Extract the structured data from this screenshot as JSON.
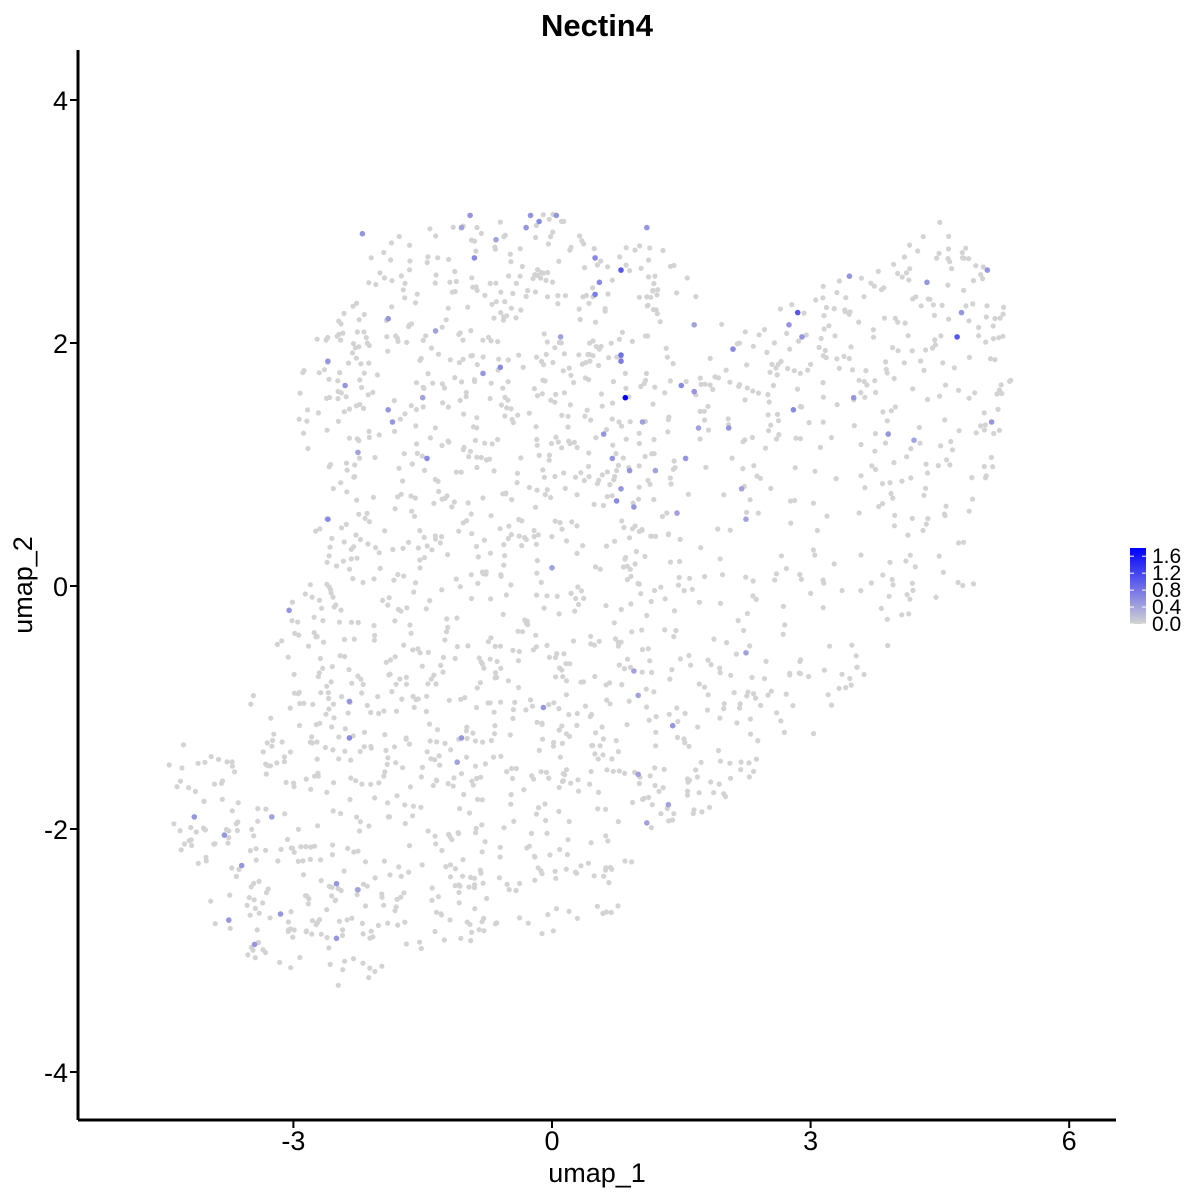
{
  "chart_data": {
    "type": "scatter",
    "title": "Nectin4",
    "xlabel": "umap_1",
    "ylabel": "umap_2",
    "xlim": [
      -5.5,
      6.5
    ],
    "ylim": [
      -4.3,
      4.4
    ],
    "xticks": [
      -3,
      0,
      3,
      6
    ],
    "yticks": [
      -4,
      -2,
      0,
      2,
      4
    ],
    "grid": false,
    "point_color_low": "#d3d3d3",
    "point_color_high": "#0000ff",
    "legend": {
      "placement": "right",
      "ticks": [
        "1.6",
        "1.2",
        "0.8",
        "0.4",
        "0.0"
      ],
      "min": 0,
      "max": 1.7
    },
    "expressing_points": [
      {
        "x": -0.95,
        "y": 3.05,
        "v": 0.5
      },
      {
        "x": -1.05,
        "y": 2.95,
        "v": 0.4
      },
      {
        "x": -0.25,
        "y": 3.05,
        "v": 0.5
      },
      {
        "x": -0.15,
        "y": 3.0,
        "v": 0.6
      },
      {
        "x": 0.05,
        "y": 3.05,
        "v": 0.5
      },
      {
        "x": -0.3,
        "y": 2.95,
        "v": 0.5
      },
      {
        "x": -0.65,
        "y": 2.85,
        "v": 0.4
      },
      {
        "x": -0.9,
        "y": 2.7,
        "v": 0.6
      },
      {
        "x": -2.2,
        "y": 2.9,
        "v": 0.5
      },
      {
        "x": 0.5,
        "y": 2.7,
        "v": 0.6
      },
      {
        "x": 0.8,
        "y": 2.6,
        "v": 1.0
      },
      {
        "x": 0.55,
        "y": 2.5,
        "v": 0.6
      },
      {
        "x": 0.5,
        "y": 2.4,
        "v": 0.7
      },
      {
        "x": 1.1,
        "y": 2.95,
        "v": 0.5
      },
      {
        "x": -1.9,
        "y": 2.2,
        "v": 0.5
      },
      {
        "x": 0.1,
        "y": 2.05,
        "v": 0.4
      },
      {
        "x": -1.35,
        "y": 2.1,
        "v": 0.4
      },
      {
        "x": 0.8,
        "y": 1.9,
        "v": 0.8
      },
      {
        "x": 0.8,
        "y": 1.85,
        "v": 0.7
      },
      {
        "x": 0.85,
        "y": 1.55,
        "v": 1.7
      },
      {
        "x": -0.6,
        "y": 1.8,
        "v": 0.6
      },
      {
        "x": -0.8,
        "y": 1.75,
        "v": 0.5
      },
      {
        "x": -2.6,
        "y": 1.85,
        "v": 0.5
      },
      {
        "x": -2.4,
        "y": 1.65,
        "v": 0.5
      },
      {
        "x": -1.9,
        "y": 1.45,
        "v": 0.5
      },
      {
        "x": -1.85,
        "y": 1.35,
        "v": 0.5
      },
      {
        "x": -1.5,
        "y": 1.55,
        "v": 0.4
      },
      {
        "x": -1.45,
        "y": 1.05,
        "v": 0.6
      },
      {
        "x": -2.25,
        "y": 1.1,
        "v": 0.4
      },
      {
        "x": -2.6,
        "y": 0.55,
        "v": 0.6
      },
      {
        "x": 0.6,
        "y": 1.25,
        "v": 0.5
      },
      {
        "x": 1.05,
        "y": 1.35,
        "v": 0.4
      },
      {
        "x": 0.7,
        "y": 1.05,
        "v": 0.5
      },
      {
        "x": 0.9,
        "y": 0.95,
        "v": 0.5
      },
      {
        "x": 0.8,
        "y": 0.8,
        "v": 0.5
      },
      {
        "x": 0.75,
        "y": 0.7,
        "v": 0.6
      },
      {
        "x": 0.95,
        "y": 0.65,
        "v": 0.5
      },
      {
        "x": 1.2,
        "y": 0.95,
        "v": 0.4
      },
      {
        "x": 1.5,
        "y": 1.65,
        "v": 0.6
      },
      {
        "x": 1.65,
        "y": 1.6,
        "v": 0.5
      },
      {
        "x": 1.7,
        "y": 1.3,
        "v": 0.4
      },
      {
        "x": 1.55,
        "y": 1.05,
        "v": 0.5
      },
      {
        "x": 2.1,
        "y": 1.95,
        "v": 0.6
      },
      {
        "x": 2.05,
        "y": 1.3,
        "v": 0.5
      },
      {
        "x": 2.2,
        "y": 0.8,
        "v": 0.4
      },
      {
        "x": 2.25,
        "y": 0.55,
        "v": 0.4
      },
      {
        "x": 1.45,
        "y": 0.6,
        "v": 0.4
      },
      {
        "x": 2.85,
        "y": 2.25,
        "v": 1.0
      },
      {
        "x": 2.75,
        "y": 2.15,
        "v": 0.5
      },
      {
        "x": 2.9,
        "y": 2.05,
        "v": 0.5
      },
      {
        "x": 2.8,
        "y": 1.45,
        "v": 0.6
      },
      {
        "x": 3.45,
        "y": 2.55,
        "v": 0.5
      },
      {
        "x": 3.5,
        "y": 1.55,
        "v": 0.5
      },
      {
        "x": 3.9,
        "y": 1.25,
        "v": 0.5
      },
      {
        "x": 4.2,
        "y": 1.2,
        "v": 0.4
      },
      {
        "x": 4.35,
        "y": 2.5,
        "v": 0.5
      },
      {
        "x": 4.75,
        "y": 2.25,
        "v": 0.5
      },
      {
        "x": 4.7,
        "y": 2.05,
        "v": 1.0
      },
      {
        "x": 5.05,
        "y": 2.6,
        "v": 0.5
      },
      {
        "x": 5.1,
        "y": 1.35,
        "v": 0.5
      },
      {
        "x": 1.65,
        "y": 2.15,
        "v": 0.4
      },
      {
        "x": 0.0,
        "y": 0.15,
        "v": 0.4
      },
      {
        "x": -3.05,
        "y": -0.2,
        "v": 0.5
      },
      {
        "x": 0.95,
        "y": -0.7,
        "v": 0.4
      },
      {
        "x": 2.25,
        "y": -0.55,
        "v": 0.4
      },
      {
        "x": 1.0,
        "y": -0.9,
        "v": 0.4
      },
      {
        "x": -0.1,
        "y": -1.0,
        "v": 0.5
      },
      {
        "x": 1.4,
        "y": -1.15,
        "v": 0.5
      },
      {
        "x": -2.35,
        "y": -0.95,
        "v": 0.5
      },
      {
        "x": -2.35,
        "y": -1.25,
        "v": 0.6
      },
      {
        "x": -1.05,
        "y": -1.25,
        "v": 0.5
      },
      {
        "x": -1.1,
        "y": -1.45,
        "v": 0.4
      },
      {
        "x": 1.0,
        "y": -1.55,
        "v": 0.4
      },
      {
        "x": 1.35,
        "y": -1.8,
        "v": 0.4
      },
      {
        "x": 1.1,
        "y": -1.95,
        "v": 0.4
      },
      {
        "x": -4.15,
        "y": -1.9,
        "v": 0.5
      },
      {
        "x": -3.8,
        "y": -2.05,
        "v": 0.5
      },
      {
        "x": -3.25,
        "y": -1.9,
        "v": 0.4
      },
      {
        "x": -3.6,
        "y": -2.3,
        "v": 0.5
      },
      {
        "x": -2.5,
        "y": -2.45,
        "v": 0.5
      },
      {
        "x": -2.25,
        "y": -2.5,
        "v": 0.4
      },
      {
        "x": -3.75,
        "y": -2.75,
        "v": 0.5
      },
      {
        "x": -3.15,
        "y": -2.7,
        "v": 0.5
      },
      {
        "x": -3.45,
        "y": -2.95,
        "v": 0.5
      },
      {
        "x": -2.5,
        "y": -2.9,
        "v": 0.5
      }
    ]
  }
}
